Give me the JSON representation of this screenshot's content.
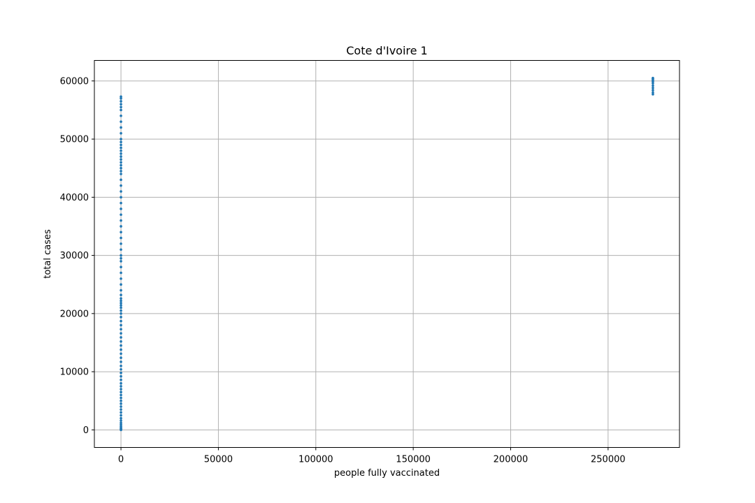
{
  "chart_data": {
    "type": "scatter",
    "title": "Cote d'Ivoire 1",
    "xlabel": "people fully vaccinated",
    "ylabel": "total cases",
    "xlim": [
      -13650,
      286650
    ],
    "ylim": [
      -3025,
      63525
    ],
    "xticks": [
      0,
      50000,
      100000,
      150000,
      200000,
      250000
    ],
    "yticks": [
      0,
      10000,
      20000,
      30000,
      40000,
      50000,
      60000
    ],
    "grid": true,
    "marker_color": "#1f77b4",
    "series": [
      {
        "x": [
          0,
          0,
          0,
          0,
          0,
          0,
          0,
          0,
          0,
          0,
          0,
          0,
          0,
          0,
          0,
          0,
          0,
          0,
          0,
          0,
          0,
          0,
          0,
          0,
          0,
          0,
          0,
          0,
          0,
          0,
          0,
          0,
          0,
          0,
          0,
          0,
          0,
          0,
          0,
          0,
          0,
          0,
          0,
          0,
          0,
          0,
          0,
          0,
          0,
          0,
          0,
          0,
          0,
          0,
          0,
          0,
          0,
          0,
          0,
          0,
          0,
          0,
          0,
          0,
          0,
          0,
          0,
          0,
          0,
          0,
          0,
          0,
          0,
          0,
          0,
          0,
          0,
          0,
          0,
          0,
          0,
          0,
          0,
          0,
          0,
          0,
          0,
          0,
          0,
          0,
          273000,
          273000,
          273000,
          273000,
          273000,
          273000,
          273000,
          273000,
          273000,
          273000,
          273000
        ],
        "y": [
          0,
          100,
          200,
          400,
          600,
          900,
          1200,
          1600,
          2000,
          2500,
          3000,
          3500,
          4000,
          4500,
          5000,
          5500,
          6000,
          6500,
          7000,
          7500,
          8000,
          8600,
          9200,
          9800,
          10400,
          11000,
          11700,
          12400,
          13100,
          13800,
          14500,
          15200,
          15900,
          16600,
          17300,
          18000,
          18700,
          19400,
          20000,
          20500,
          21000,
          21400,
          21800,
          22200,
          22600,
          23200,
          24000,
          25000,
          26000,
          27000,
          28000,
          29000,
          30000,
          31000,
          32000,
          33000,
          34000,
          35000,
          36000,
          37000,
          38000,
          39000,
          40000,
          41000,
          42000,
          43000,
          44000,
          44500,
          45000,
          45500,
          46000,
          46500,
          47000,
          47500,
          48000,
          48500,
          49000,
          49500,
          50000,
          51000,
          52000,
          53000,
          54000,
          55000,
          55500,
          56000,
          56500,
          57000,
          57300,
          29500,
          57700,
          58000,
          58400,
          58800,
          59200,
          59600,
          59900,
          60100,
          60300,
          60400,
          60500
        ]
      }
    ]
  }
}
